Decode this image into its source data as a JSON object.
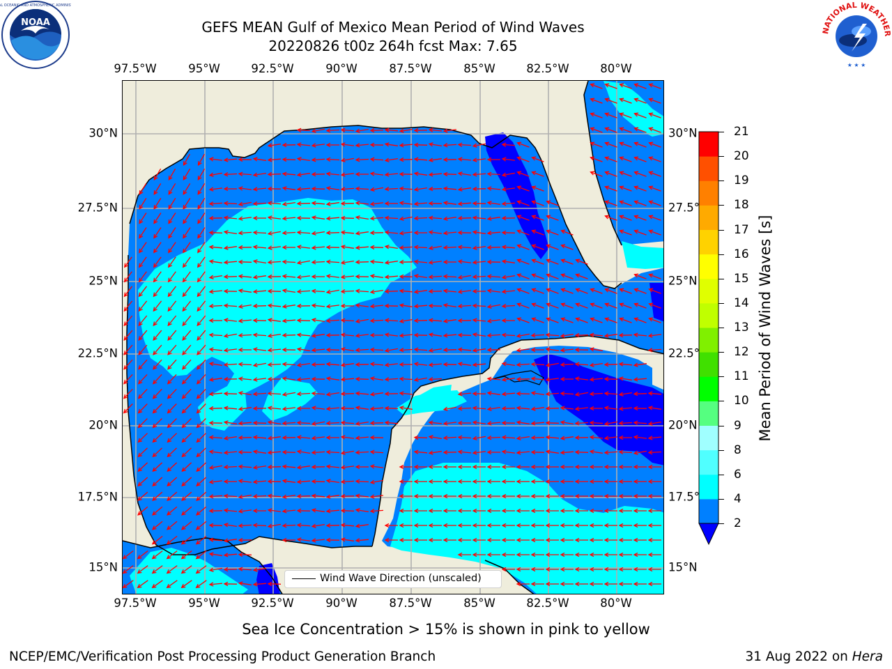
{
  "header": {
    "title_line1": "GEFS MEAN Gulf of Mexico Mean Period of Wind Waves",
    "title_line2": "20220826 t00z 264h fcst   Max: 7.65"
  },
  "logos": {
    "left": {
      "name": "noaa-logo",
      "text": "NOAA"
    },
    "right": {
      "name": "nws-logo",
      "text": "NATIONAL WEATHER SERVICE"
    }
  },
  "map": {
    "lon_labels": [
      "97.5°W",
      "95°W",
      "92.5°W",
      "90°W",
      "87.5°W",
      "85°W",
      "82.5°W",
      "80°W"
    ],
    "lat_labels_left": [
      "30°N",
      "27.5°N",
      "25°N",
      "22.5°N",
      "20°N",
      "17.5°N",
      "15°N"
    ],
    "lat_labels_right": [
      "30°N",
      "27.5°N",
      "25°N",
      "22.5°N",
      "20°N",
      "17.5°N",
      "15°N"
    ],
    "colors": {
      "land": "#efeddc",
      "coast": "#000000",
      "grid": "#b0b0b0",
      "arrow": "#ff0000"
    },
    "legend_label": "Wind Wave Direction (unscaled)"
  },
  "colorbar": {
    "label": "Mean Period of Wind Waves [s]",
    "ticks": [
      "2",
      "4",
      "6",
      "8",
      "9",
      "10",
      "11",
      "12",
      "13",
      "14",
      "15",
      "16",
      "17",
      "18",
      "19",
      "20",
      "21"
    ],
    "colors": [
      "#0080ff",
      "#00ffff",
      "#50ffff",
      "#a0ffff",
      "#55ff80",
      "#00ff00",
      "#40e000",
      "#80f000",
      "#c0ff00",
      "#e0ff00",
      "#ffff00",
      "#ffd200",
      "#ffaa00",
      "#ff8000",
      "#ff5000",
      "#ff0000"
    ],
    "extend_color": "#0000ff"
  },
  "note": "Sea Ice Concentration > 15% is shown in pink to yellow",
  "footer": {
    "left": "NCEP/EMC/Verification Post Processing Product Generation Branch",
    "right_prefix": "31 Aug 2022 on ",
    "right_host": "Hera"
  }
}
